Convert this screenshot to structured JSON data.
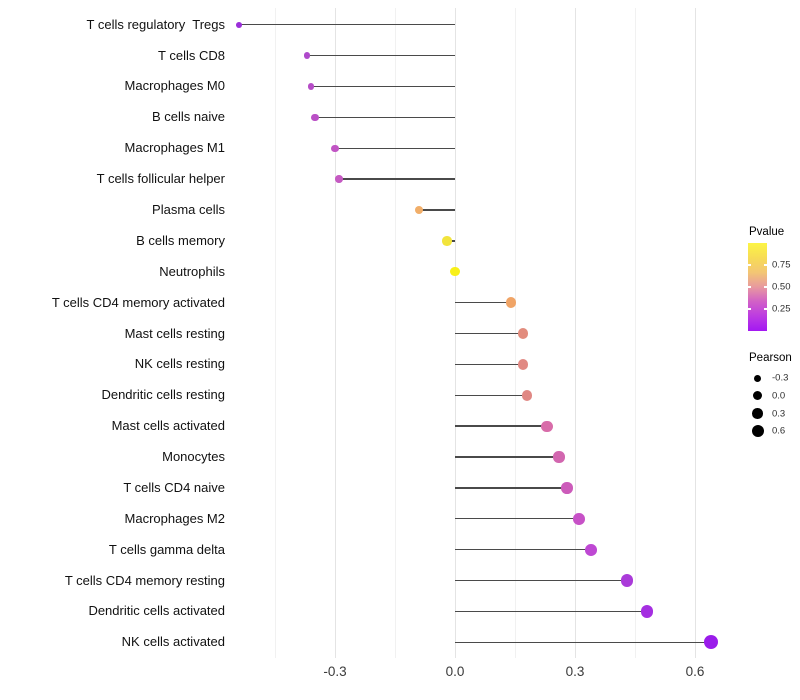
{
  "chart_data": {
    "type": "scatter",
    "subtype": "lollipop",
    "title": "",
    "xlabel": "",
    "ylabel": "",
    "xlim": [
      -0.575,
      0.67
    ],
    "grid": "vertical-only",
    "legend_position": "right",
    "xticks": {
      "values": [
        -0.3,
        0.0,
        0.3,
        0.6
      ],
      "labels": [
        "-0.3",
        "0.0",
        "0.3",
        "0.6"
      ]
    },
    "minor_xticks": [
      -0.45,
      -0.15,
      0.15,
      0.45
    ],
    "baseline": 0.0,
    "points": [
      {
        "label": "T cells regulatory  Tregs",
        "pearson": -0.54,
        "color": "#9B2FD9"
      },
      {
        "label": "T cells CD8",
        "pearson": -0.37,
        "color": "#AF49CB"
      },
      {
        "label": "Macrophages M0",
        "pearson": -0.36,
        "color": "#B64DC7"
      },
      {
        "label": "B cells naive",
        "pearson": -0.35,
        "color": "#BA50C6"
      },
      {
        "label": "Macrophages M1",
        "pearson": -0.3,
        "color": "#C155C4"
      },
      {
        "label": "T cells follicular helper",
        "pearson": -0.29,
        "color": "#C55AC2"
      },
      {
        "label": "Plasma cells",
        "pearson": -0.09,
        "color": "#F1AE69"
      },
      {
        "label": "B cells memory",
        "pearson": -0.02,
        "color": "#F2E43C"
      },
      {
        "label": "Neutrophils",
        "pearson": 0.0,
        "color": "#F8F019"
      },
      {
        "label": "T cells CD4 memory activated",
        "pearson": 0.14,
        "color": "#F0A466"
      },
      {
        "label": "Mast cells resting",
        "pearson": 0.17,
        "color": "#E28C7D"
      },
      {
        "label": "NK cells resting",
        "pearson": 0.17,
        "color": "#E18983"
      },
      {
        "label": "Dendritic cells resting",
        "pearson": 0.18,
        "color": "#E08884"
      },
      {
        "label": "Mast cells activated",
        "pearson": 0.23,
        "color": "#D86CA9"
      },
      {
        "label": "Monocytes",
        "pearson": 0.26,
        "color": "#D266AF"
      },
      {
        "label": "T cells CD4 naive",
        "pearson": 0.28,
        "color": "#CC5BBA"
      },
      {
        "label": "Macrophages M2",
        "pearson": 0.31,
        "color": "#C751C7"
      },
      {
        "label": "T cells gamma delta",
        "pearson": 0.34,
        "color": "#BE48D3"
      },
      {
        "label": "T cells CD4 memory resting",
        "pearson": 0.43,
        "color": "#AA3BD9"
      },
      {
        "label": "Dendritic cells activated",
        "pearson": 0.48,
        "color": "#A52FE1"
      },
      {
        "label": "NK cells activated",
        "pearson": 0.64,
        "color": "#9A1CEA"
      }
    ],
    "legends": {
      "pvalue": {
        "title": "Pvalue",
        "tick_labels": [
          "0.75",
          "0.50",
          "0.25"
        ],
        "tick_values": [
          0.75,
          0.5,
          0.25
        ],
        "range": [
          0,
          1
        ],
        "gradient_top_to_bottom": [
          "#FCF545",
          "#F7DC55",
          "#F3C674",
          "#E8999F",
          "#D160C7",
          "#BC3BE2",
          "#A318F2"
        ]
      },
      "pearson": {
        "title": "Pearson",
        "items": [
          {
            "label": "-0.3",
            "value": -0.3
          },
          {
            "label": "0.0",
            "value": 0.0
          },
          {
            "label": "0.3",
            "value": 0.3
          },
          {
            "label": "0.6",
            "value": 0.6
          }
        ]
      }
    }
  }
}
